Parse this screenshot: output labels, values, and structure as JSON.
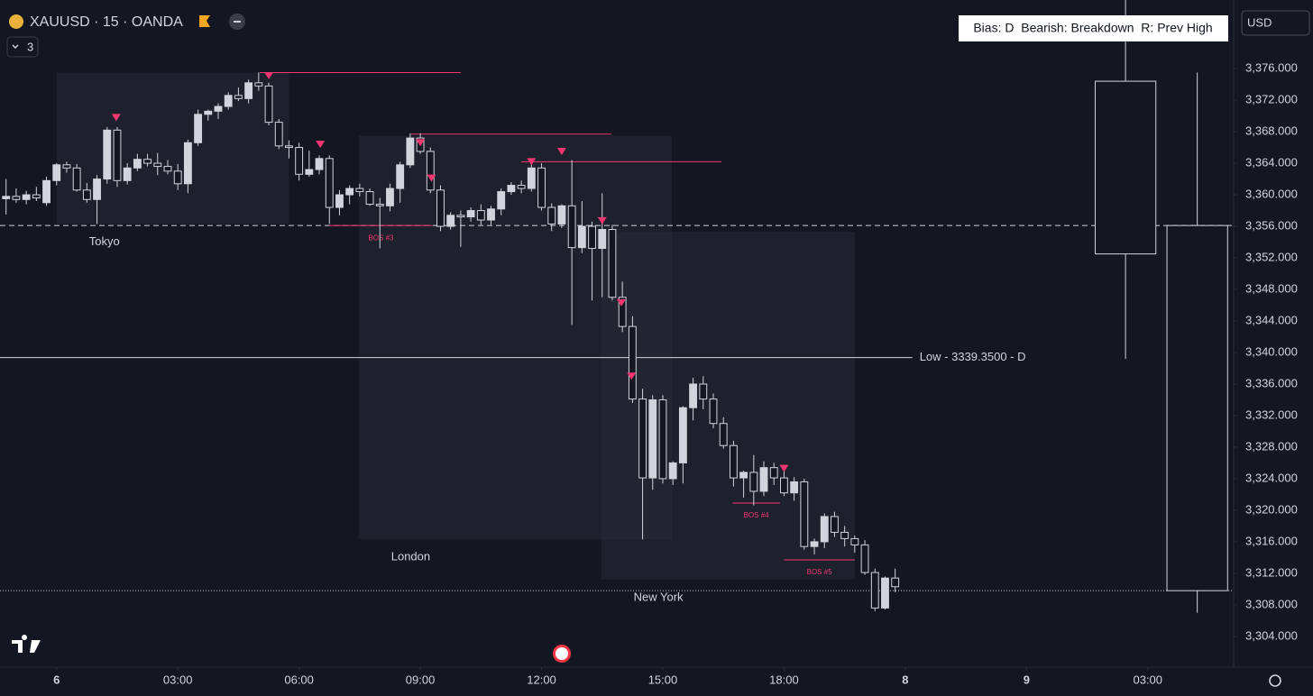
{
  "chart_data": {
    "type": "candlestick",
    "title": "XAUUSD · 15 · OANDA",
    "interval_badge": "3",
    "currency": "USD",
    "bias": "Bias: D  Bearish: Breakdown  R: Prev High",
    "x": [
      -5,
      -4,
      -3,
      -2,
      -1,
      0,
      1,
      2,
      3,
      4,
      5,
      6,
      7,
      8,
      9,
      10,
      11,
      12,
      13,
      14,
      15,
      16,
      17,
      18,
      19,
      20,
      21,
      22,
      23,
      24,
      25,
      26,
      27,
      28,
      29,
      30,
      31,
      32,
      33,
      34,
      35,
      36,
      37,
      38,
      39,
      40,
      41,
      42,
      43,
      44,
      45,
      46,
      47,
      48,
      49,
      50,
      51,
      52,
      53,
      54,
      55,
      56,
      57,
      58,
      59,
      60,
      61,
      62,
      63,
      64,
      65,
      66,
      67,
      68,
      69,
      70,
      71,
      72,
      73,
      74,
      75,
      76,
      77,
      78,
      79,
      80,
      81,
      82,
      83
    ],
    "open": [
      3359.5,
      3359.8,
      3359.4,
      3360,
      3359,
      3361.8,
      3363.8,
      3363.4,
      3360.6,
      3359.4,
      3362,
      3368.2,
      3361.8,
      3363.4,
      3364.5,
      3364,
      3363.6,
      3363,
      3361.4,
      3366.6,
      3370.2,
      3370.6,
      3371.2,
      3372.6,
      3372.2,
      3374.2,
      3373.8,
      3369.2,
      3366.2,
      3366,
      3362.6,
      3363.2,
      3364.6,
      3358.4,
      3360,
      3360.8,
      3360.4,
      3358.8,
      3358.6,
      3360.8,
      3363.8,
      3367.2,
      3365.5,
      3360.6,
      3356,
      3357.4,
      3357.2,
      3358,
      3356.8,
      3358.2,
      3360.4,
      3361.2,
      3360.8,
      3363.4,
      3358.4,
      3356.3,
      3358.6,
      3353.3,
      3356,
      3353.2,
      3355.6,
      3347,
      3343.3,
      3334.1,
      3324.1,
      3334,
      3324,
      3326,
      3333,
      3336,
      3334.1,
      3331,
      3328.2,
      3324.1,
      3324.8,
      3322.4,
      3325.4,
      3324.1,
      3322.2,
      3323.6,
      3315.4,
      3316,
      3319.2,
      3317.2,
      3316.4,
      3315.6,
      3312.1,
      3307.6,
      3311.4
    ],
    "high": [
      3362,
      3360.8,
      3360.5,
      3361,
      3362.3,
      3364,
      3364.2,
      3363.9,
      3361.5,
      3362.5,
      3368.6,
      3368.6,
      3364,
      3365.2,
      3365.2,
      3365.3,
      3364.4,
      3363.9,
      3367,
      3370.8,
      3370.8,
      3371.6,
      3373,
      3373.6,
      3374.6,
      3375.5,
      3374.2,
      3369.6,
      3366.9,
      3366.6,
      3365.6,
      3365,
      3365,
      3360.6,
      3361.2,
      3361.4,
      3360.8,
      3359.6,
      3361.4,
      3364.2,
      3367.8,
      3367.8,
      3366,
      3361.2,
      3357.8,
      3358,
      3358.4,
      3358.8,
      3358.6,
      3360.8,
      3361.6,
      3361.8,
      3364.4,
      3364,
      3358.9,
      3358.8,
      3364.4,
      3359.2,
      3356.6,
      3360.2,
      3356.2,
      3349,
      3344.6,
      3335.4,
      3334.6,
      3334.6,
      3326.2,
      3333.2,
      3336.8,
      3337,
      3334.8,
      3331.8,
      3328.8,
      3325,
      3327,
      3326.2,
      3326,
      3325,
      3324.2,
      3324,
      3316.4,
      3319.6,
      3319.8,
      3318,
      3316.8,
      3316.2,
      3312.6,
      3311.6,
      3312.6
    ],
    "low": [
      3357.5,
      3359,
      3358.8,
      3359.2,
      3358.6,
      3361.2,
      3362.8,
      3360.4,
      3359,
      3356.3,
      3361.4,
      3361,
      3361.3,
      3363,
      3363.6,
      3362.5,
      3362.6,
      3360.6,
      3360.2,
      3366.2,
      3369.4,
      3369.6,
      3370.8,
      3371.9,
      3371.6,
      3373.2,
      3368.8,
      3365.8,
      3364.6,
      3361.8,
      3362.3,
      3362.6,
      3356.3,
      3357.4,
      3358.8,
      3359.8,
      3358.6,
      3353.2,
      3357.9,
      3359,
      3363.4,
      3365.2,
      3360.2,
      3355.4,
      3355.6,
      3353.4,
      3356.6,
      3356.2,
      3356.2,
      3357.4,
      3360,
      3360.2,
      3360.4,
      3358,
      3355.4,
      3355.8,
      3343.5,
      3352.6,
      3346.6,
      3347,
      3346.6,
      3342.6,
      3333.6,
      3316.3,
      3322.6,
      3323.4,
      3323.2,
      3323.4,
      3331.4,
      3332.8,
      3330.4,
      3327.8,
      3323,
      3321.6,
      3320.6,
      3321.8,
      3323.2,
      3321.8,
      3321.2,
      3315,
      3314.4,
      3315.2,
      3316.6,
      3315.4,
      3314.6,
      3311.8,
      3307.2,
      3307.4,
      3309.6
    ],
    "close": [
      3359.8,
      3359.4,
      3360,
      3359.6,
      3361.8,
      3363.8,
      3363.4,
      3360.6,
      3359.4,
      3362,
      3368.2,
      3361.8,
      3363.4,
      3364.5,
      3364,
      3363.6,
      3363,
      3361.4,
      3366.6,
      3370.2,
      3370.6,
      3371.2,
      3372.6,
      3372.2,
      3374.2,
      3373.8,
      3369.2,
      3366.2,
      3366,
      3362.6,
      3363.2,
      3364.6,
      3358.4,
      3360,
      3360.8,
      3360.4,
      3358.8,
      3358.6,
      3360.8,
      3363.8,
      3367.2,
      3365.5,
      3360.6,
      3356,
      3357.4,
      3357.2,
      3358,
      3356.8,
      3358.2,
      3360.4,
      3361.2,
      3360.8,
      3363.4,
      3358.4,
      3356.3,
      3358.6,
      3353.3,
      3356,
      3353.2,
      3355.6,
      3347,
      3343.3,
      3334.1,
      3324.1,
      3334,
      3324,
      3326,
      3333,
      3336,
      3334.1,
      3331,
      3328.2,
      3324.1,
      3324.8,
      3322.4,
      3325.4,
      3324.1,
      3322.2,
      3323.6,
      3315.4,
      3316,
      3319.2,
      3317.2,
      3316.4,
      3315.6,
      3312.1,
      3307.6,
      3311.4,
      3310.3
    ],
    "up_color": "#d1d4dc",
    "down_color": "#131722",
    "wick_color": "#d1d4dc",
    "xlim": [
      -5.6,
      116.5
    ],
    "ylim": [
      3300.1,
      3384.7
    ],
    "xticks": [
      {
        "value": 0,
        "label": "6"
      },
      {
        "value": 12,
        "label": "03:00"
      },
      {
        "value": 24,
        "label": "06:00"
      },
      {
        "value": 36,
        "label": "09:00"
      },
      {
        "value": 48,
        "label": "12:00"
      },
      {
        "value": 60,
        "label": "15:00"
      },
      {
        "value": 72,
        "label": "18:00"
      },
      {
        "value": 84,
        "label": "8"
      },
      {
        "value": 96,
        "label": "9"
      },
      {
        "value": 108,
        "label": "03:00"
      }
    ],
    "yticks": [
      {
        "value": 3304,
        "label": "3,304.000"
      },
      {
        "value": 3308,
        "label": "3,308.000"
      },
      {
        "value": 3312,
        "label": "3,312.000"
      },
      {
        "value": 3316,
        "label": "3,316.000"
      },
      {
        "value": 3320,
        "label": "3,320.000"
      },
      {
        "value": 3324,
        "label": "3,324.000"
      },
      {
        "value": 3328,
        "label": "3,328.000"
      },
      {
        "value": 3332,
        "label": "3,332.000"
      },
      {
        "value": 3336,
        "label": "3,336.000"
      },
      {
        "value": 3340,
        "label": "3,340.000"
      },
      {
        "value": 3344,
        "label": "3,344.000"
      },
      {
        "value": 3348,
        "label": "3,348.000"
      },
      {
        "value": 3352,
        "label": "3,352.000"
      },
      {
        "value": 3356,
        "label": "3,356.000"
      },
      {
        "value": 3360,
        "label": "3,360.000"
      },
      {
        "value": 3364,
        "label": "3,364.000"
      },
      {
        "value": 3368,
        "label": "3,368.000"
      },
      {
        "value": 3372,
        "label": "3,372.000"
      },
      {
        "value": 3376,
        "label": "3,376.000"
      }
    ],
    "grid": false,
    "htf": {
      "x": [
        105.8,
        112.9
      ],
      "open": [
        3374.4,
        3356.1
      ],
      "high": [
        3384.7,
        3375.5
      ],
      "low": [
        3339.2,
        3307
      ],
      "close": [
        3352.5,
        3309.8
      ]
    },
    "session_color": "#262a36",
    "sessions": [
      {
        "label": "Tokyo",
        "x": [
          0,
          23
        ],
        "y": [
          3356.3,
          3375.5
        ]
      },
      {
        "label": "London",
        "x": [
          29.9,
          60.9
        ],
        "y": [
          3316.3,
          3367.5
        ]
      },
      {
        "label": "New York",
        "x": [
          53.9,
          79
        ],
        "y": [
          3311.2,
          3355.3
        ]
      }
    ],
    "marker_color": "#f23672",
    "markers": {
      "x": [
        5.9,
        21,
        26.1,
        36,
        37.1,
        47,
        50,
        54,
        55.9,
        56.9,
        72
      ],
      "y": [
        3369.8,
        3375.1,
        3366.4,
        3366.6,
        3362.1,
        3364.2,
        3365.5,
        3356.7,
        3346.3,
        3337,
        3325.3
      ]
    },
    "level_color": "#f23672",
    "levels": [
      {
        "x": [
          20.1,
          40
        ],
        "y": 3375.5
      },
      {
        "x": [
          35.1,
          54.9
        ],
        "y": 3367.7
      },
      {
        "x": [
          46,
          65.8
        ],
        "y": 3364.2
      }
    ],
    "bos": [
      {
        "label": "BOS #3",
        "x": [
          27,
          37.2
        ],
        "y": 3356.1
      },
      {
        "label": "BOS #4",
        "x": [
          66.9,
          71.6
        ],
        "y": 3320.9
      },
      {
        "label": "BOS #5",
        "x": [
          72,
          79
        ],
        "y": 3313.7
      }
    ],
    "hlines": [
      {
        "y": 3356.1,
        "style": "dashed"
      },
      {
        "y": 3309.8,
        "style": "dotted"
      },
      {
        "y": 3339.35,
        "style": "solid",
        "x_end": 84.7,
        "label": "Low - 3339.3500 - D"
      }
    ]
  }
}
